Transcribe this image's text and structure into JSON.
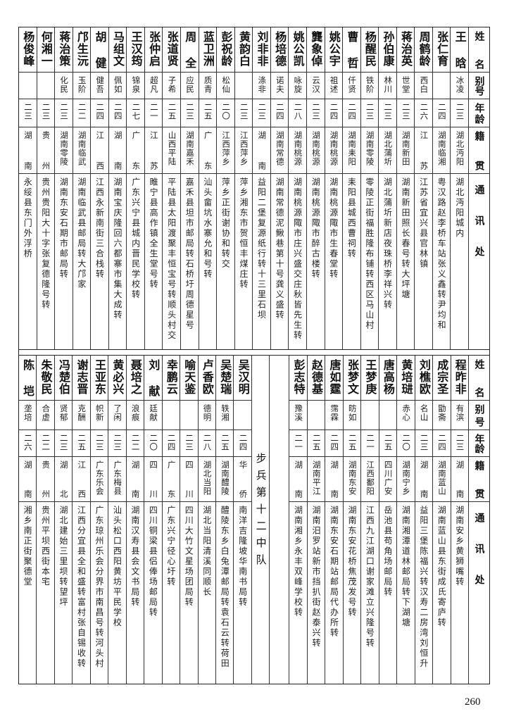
{
  "headers": {
    "name": "姓名",
    "alias": "别号",
    "age": "年龄",
    "native": "籍贯",
    "address": "通讯处"
  },
  "top": {
    "rows": [
      {
        "name": "王晗",
        "alias": "冰凌",
        "age": "二三",
        "native": "湖北沔阳",
        "address": "湖北沔阳城内"
      },
      {
        "name": "张仁育",
        "alias": "",
        "age": "二四",
        "native": "湖南临湘",
        "address": "粤汉路赵李桥车站张义鑫转尹均和"
      },
      {
        "name": "周鹤龄",
        "alias": "西白",
        "age": "二六",
        "native": "江苏",
        "address": "江苏省宜兴县官林镇"
      },
      {
        "name": "蒋治英",
        "alias": "世堂",
        "age": "二三",
        "native": "湖南新田",
        "address": "湖南新田照长春号转大坪塘"
      },
      {
        "name": "孙伯康",
        "alias": "林川",
        "age": "二三",
        "native": "湖北蒲圻",
        "address": "湖北蒲圻新店夜珠桥李祥兴转"
      },
      {
        "name": "杨醒民",
        "alias": "铁阶",
        "age": "二三",
        "native": "湖南零陵",
        "address": "零陵正街福胜隆布铺转西区马山村"
      },
      {
        "name": "曹哲",
        "alias": "仟贤",
        "age": "二四",
        "native": "湖南耒阳",
        "address": "耒阳县城西曹祠转"
      },
      {
        "name": "姚公宇",
        "alias": "祖述",
        "age": "二四",
        "native": "湖南桃源",
        "address": "湖南桃源陬市生春堂转"
      },
      {
        "name": "龔象倬",
        "alias": "云汉",
        "age": "二三",
        "native": "湖南桃源",
        "address": "湖南桃源陬市醉古楼转"
      },
      {
        "name": "姚公凯",
        "alias": "咏旋",
        "age": "二八",
        "native": "湖南桃源",
        "address": "湖南桃源陬市庄兴盛交庄秋皆先生转"
      },
      {
        "name": "杨培德",
        "alias": "诺夫",
        "age": "二四",
        "native": "湖南常德",
        "address": "湖南常德泥鳅巷第十号龚义盛转"
      },
      {
        "name": "刘非非",
        "alias": "涤非",
        "age": "二三",
        "native": "湖南",
        "address": "益阳二堡复源纸行转十三里石坝"
      },
      {
        "name": "黄韵白",
        "alias": "",
        "age": "二三",
        "native": "江西萍乡",
        "address": "萍乡湘东市贺恒丰煤庄转"
      },
      {
        "name": "彭祝龄",
        "alias": "松仙",
        "age": "二〇",
        "native": "江西萍乡",
        "address": "萍乡正街谢协和转交"
      },
      {
        "name": "蓝卫洲",
        "alias": "质青",
        "age": "二五",
        "native": "广东",
        "address": "汕头畲坑水寨允和号转"
      },
      {
        "name": "周全",
        "alias": "应民",
        "age": "二三",
        "native": "湖南嘉禾",
        "address": "嘉禾县坦市邮局转石桥圩周德星号"
      },
      {
        "name": "张道贤",
        "alias": "子希",
        "age": "二五",
        "native": "山西平陆",
        "address": "平陆县太阳渡聚丰恒宝号转顺头村交"
      },
      {
        "name": "张仲启",
        "alias": "超凡",
        "age": "二一",
        "native": "江苏",
        "address": "睢宁县高作镇全生堂号转"
      },
      {
        "name": "王汉筠",
        "alias": "锦泉",
        "age": "二七",
        "native": "广东",
        "address": "广东兴宁县城内晋民学校转"
      },
      {
        "name": "马组文",
        "alias": "佩如",
        "age": "二四",
        "native": "湖南",
        "address": "湖南宝庆隆回六都寨市集大成转"
      },
      {
        "name": "胡健",
        "alias": "健吾",
        "age": "二四",
        "native": "江西",
        "address": "江西永新南街三合栈转"
      },
      {
        "name": "邝生沅",
        "alias": "玉阶",
        "age": "二二",
        "native": "湖南临武",
        "address": "湖南临武县邮局转大邝家"
      },
      {
        "name": "蒋治策",
        "alias": "化民",
        "age": "二三",
        "native": "湖南零陵",
        "address": "湖南东安石期市邮局转"
      },
      {
        "name": "何湘一",
        "alias": "",
        "age": "二三",
        "native": "贵州",
        "address": "贵州贵阳大十字张复德隆号转"
      },
      {
        "name": "杨俊峰",
        "alias": "",
        "age": "二三",
        "native": "湖南",
        "address": "永绥县东门外浮桥"
      }
    ]
  },
  "bottom": {
    "group_label": "步兵第十二中队",
    "rows_right": [
      {
        "name": "程昨非",
        "alias": "有滨",
        "age": "二三",
        "native": "湖南",
        "address": "湖南安乡黄狮嘴转"
      },
      {
        "name": "成宗圣",
        "alias": "勖斋",
        "age": "二四",
        "native": "湖南蓝山",
        "address": "湖南蓝山县东街成氏寄庐转"
      },
      {
        "name": "刘樵欧",
        "alias": "名山",
        "age": "二三",
        "native": "湖南",
        "address": "益阳三堡陈福兴转汉寿二房湾刘恒升"
      },
      {
        "name": "黄培琎",
        "alias": "赤心",
        "age": "二〇",
        "native": "湖南宁乡",
        "address": "湖南湘潭道林邮局转下湖塘"
      },
      {
        "name": "唐高杨",
        "alias": "",
        "age": "二五",
        "native": "四川广安",
        "address": "岳池县苟角场邮局转"
      },
      {
        "name": "王梦庚",
        "alias": "",
        "age": "二一",
        "native": "江西鄱阳",
        "address": "江西九江湖口谢家滩立兴隆号转"
      },
      {
        "name": "张梦文",
        "alias": "昉如",
        "age": "二五",
        "native": "湖南东安",
        "address": "湖南东安花桥焦茂发号转"
      },
      {
        "name": "唐如霆",
        "alias": "霈霖",
        "age": "二四",
        "native": "湖南",
        "address": "湖南东安石期站邮局代办所转"
      },
      {
        "name": "赵德基",
        "alias": "",
        "age": "二五",
        "native": "湖南平江",
        "address": "湖南汨罗站新市挡扒街赵泰兴转"
      },
      {
        "name": "彭志特",
        "alias": "豫溪",
        "age": "二一",
        "native": "湖南",
        "address": "湖南湘乡永丰双峰学校转"
      }
    ],
    "rows_left": [
      {
        "name": "吴汉明",
        "alias": "",
        "age": "二四",
        "native": "华侨",
        "address": "南洋吉隆坡华南书局转"
      },
      {
        "name": "吴楚瑞",
        "alias": "轶湘",
        "age": "二五",
        "native": "湖南醴陵",
        "address": "醴陵东乡白兔潭邮局转袁石云转荷田"
      },
      {
        "name": "卢香欧",
        "alias": "德明",
        "age": "二八",
        "native": "湖北当阳",
        "address": "湖北当阳清溪同顺长"
      },
      {
        "name": "喻天鉴",
        "alias": "",
        "age": "二三",
        "native": "四川",
        "address": "四川大竹文星场团局转"
      },
      {
        "name": "幸鹏云",
        "alias": "",
        "age": "二四",
        "native": "广东",
        "address": "广东兴宁径心圩转"
      },
      {
        "name": "刘献",
        "alias": "廷献",
        "age": "二〇",
        "native": "四川",
        "address": "四川铜梁县侣俸场邮局转"
      },
      {
        "name": "聂培之",
        "alias": "浪痕",
        "age": "二二",
        "native": "湖南",
        "address": "湖南汉寿县会文书局转"
      },
      {
        "name": "黄必兴",
        "alias": "了闲",
        "age": "二三",
        "native": "广东梅县",
        "address": "汕头松口西阳黄坊平民学校"
      },
      {
        "name": "王亚东",
        "alias": "帜新",
        "age": "二三",
        "native": "广东乐会",
        "address": "广东琼州乐会分界市南昌号转河头村"
      },
      {
        "name": "谢志晋",
        "alias": "克酬",
        "age": "二五",
        "native": "江西",
        "address": "江西分宜县全和盛转富村张自锡收转"
      },
      {
        "name": "冯楚伯",
        "alias": "贤郁",
        "age": "二三",
        "native": "湖北",
        "address": "湖北建始三里坝转望坪"
      },
      {
        "name": "朱敬民",
        "alias": "合虚",
        "age": "二二",
        "native": "贵州",
        "address": "贵州平坝西街本宅"
      },
      {
        "name": "陈垲",
        "alias": "垄培",
        "age": "二六",
        "native": "湖南",
        "address": "湘乡南正街聚德堂"
      }
    ]
  },
  "page_number": "260"
}
